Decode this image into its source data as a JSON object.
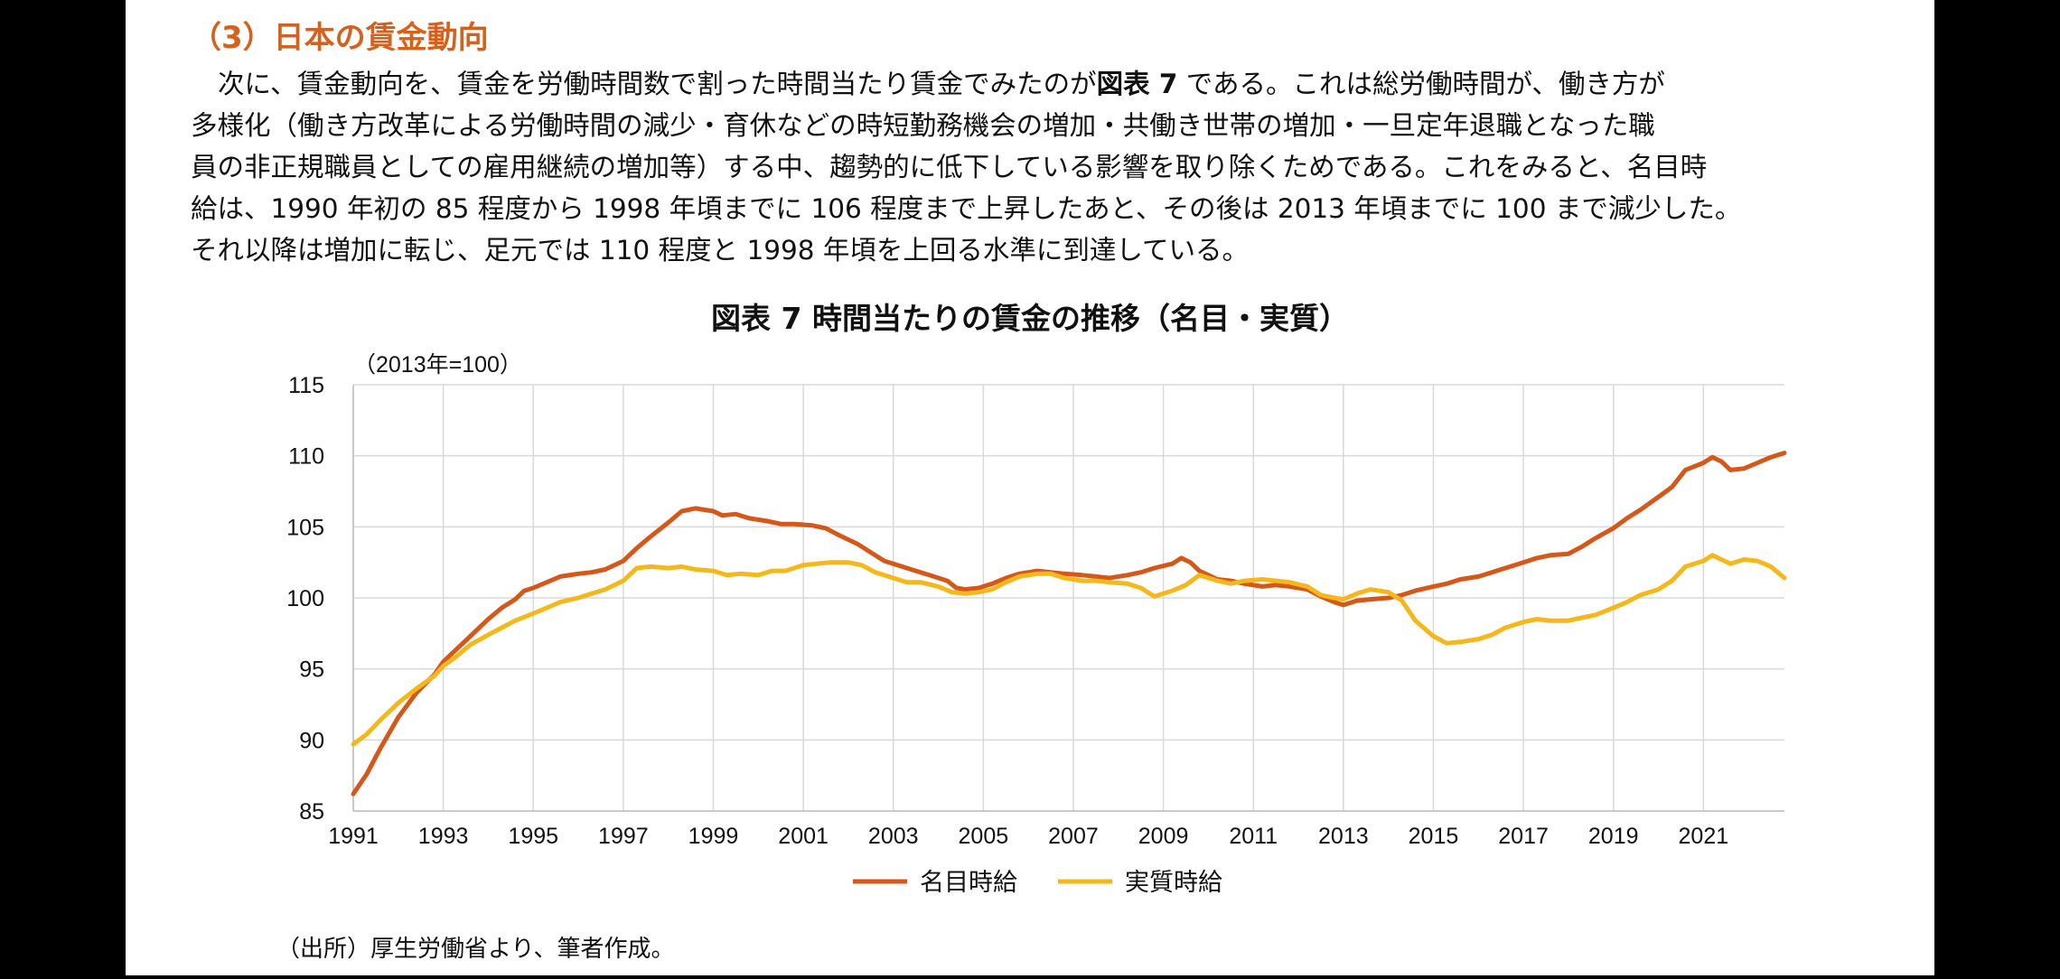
{
  "section": {
    "heading": "（3）日本の賃金動向"
  },
  "paragraph": {
    "l1_pre": "次に、賃金動向を、賃金を労働時間数で割った時間当たり賃金でみたのが",
    "l1_ref": "図表 7",
    "l1_post": " である。これは総労働時間が、働き方が",
    "l2": "多様化（働き方改革による労働時間の減少・育休などの時短勤務機会の増加・共働き世帯の増加・一旦定年退職となった職",
    "l3": "員の非正規職員としての雇用継続の増加等）する中、趨勢的に低下している影響を取り除くためである。これをみると、名目時",
    "l4": "給は、1990 年初の 85 程度から 1998 年頃までに 106 程度まで上昇したあと、その後は 2013 年頃までに 100 まで減少した。",
    "l5": "それ以降は増加に転じ、足元では 110 程度と 1998 年頃を上回る水準に到達している。"
  },
  "footer": {
    "source": "（出所）厚生労働省より、筆者作成。"
  },
  "chart_data": {
    "type": "line",
    "title": "図表 7  時間当たりの賃金の推移（名目・実質）",
    "unit_label": "（2013年=100）",
    "ylim": [
      85,
      115
    ],
    "xlim": [
      1991,
      2022.8
    ],
    "y_ticks": [
      "85",
      "90",
      "95",
      "100",
      "105",
      "110",
      "115"
    ],
    "x_ticks": [
      "1991",
      "1993",
      "1995",
      "1997",
      "1999",
      "2001",
      "2003",
      "2005",
      "2007",
      "2009",
      "2011",
      "2013",
      "2015",
      "2017",
      "2019",
      "2021"
    ],
    "grid": true,
    "legend_position": "bottom-center",
    "series": [
      {
        "name": "名目時給",
        "color": "#d4581a",
        "points": [
          [
            1991.0,
            86.2
          ],
          [
            1991.3,
            87.6
          ],
          [
            1991.6,
            89.4
          ],
          [
            1992.0,
            91.6
          ],
          [
            1992.4,
            93.3
          ],
          [
            1992.8,
            94.6
          ],
          [
            1993.0,
            95.5
          ],
          [
            1993.3,
            96.4
          ],
          [
            1993.6,
            97.3
          ],
          [
            1994.0,
            98.5
          ],
          [
            1994.3,
            99.3
          ],
          [
            1994.6,
            99.9
          ],
          [
            1994.8,
            100.5
          ],
          [
            1995.0,
            100.7
          ],
          [
            1995.3,
            101.1
          ],
          [
            1995.6,
            101.5
          ],
          [
            1996.0,
            101.7
          ],
          [
            1996.3,
            101.8
          ],
          [
            1996.6,
            102.0
          ],
          [
            1997.0,
            102.6
          ],
          [
            1997.3,
            103.5
          ],
          [
            1997.6,
            104.3
          ],
          [
            1998.0,
            105.3
          ],
          [
            1998.3,
            106.1
          ],
          [
            1998.6,
            106.3
          ],
          [
            1999.0,
            106.1
          ],
          [
            1999.2,
            105.8
          ],
          [
            1999.5,
            105.9
          ],
          [
            1999.8,
            105.6
          ],
          [
            2000.2,
            105.4
          ],
          [
            2000.5,
            105.2
          ],
          [
            2000.8,
            105.2
          ],
          [
            2001.2,
            105.1
          ],
          [
            2001.5,
            104.9
          ],
          [
            2001.8,
            104.4
          ],
          [
            2002.2,
            103.8
          ],
          [
            2002.5,
            103.2
          ],
          [
            2002.8,
            102.6
          ],
          [
            2003.2,
            102.2
          ],
          [
            2003.5,
            101.9
          ],
          [
            2003.8,
            101.6
          ],
          [
            2004.2,
            101.2
          ],
          [
            2004.4,
            100.7
          ],
          [
            2004.6,
            100.6
          ],
          [
            2004.9,
            100.7
          ],
          [
            2005.2,
            101.0
          ],
          [
            2005.5,
            101.4
          ],
          [
            2005.8,
            101.7
          ],
          [
            2006.2,
            101.9
          ],
          [
            2006.5,
            101.8
          ],
          [
            2006.8,
            101.7
          ],
          [
            2007.2,
            101.6
          ],
          [
            2007.5,
            101.5
          ],
          [
            2007.8,
            101.4
          ],
          [
            2008.2,
            101.6
          ],
          [
            2008.5,
            101.8
          ],
          [
            2008.8,
            102.1
          ],
          [
            2009.2,
            102.4
          ],
          [
            2009.4,
            102.8
          ],
          [
            2009.6,
            102.5
          ],
          [
            2009.8,
            101.9
          ],
          [
            2010.2,
            101.3
          ],
          [
            2010.5,
            101.2
          ],
          [
            2010.8,
            101.0
          ],
          [
            2011.2,
            100.8
          ],
          [
            2011.5,
            100.9
          ],
          [
            2011.8,
            100.8
          ],
          [
            2012.2,
            100.6
          ],
          [
            2012.5,
            100.1
          ],
          [
            2012.8,
            99.7
          ],
          [
            2013.0,
            99.5
          ],
          [
            2013.3,
            99.8
          ],
          [
            2013.6,
            99.9
          ],
          [
            2014.0,
            100.0
          ],
          [
            2014.3,
            100.2
          ],
          [
            2014.6,
            100.5
          ],
          [
            2015.0,
            100.8
          ],
          [
            2015.3,
            101.0
          ],
          [
            2015.6,
            101.3
          ],
          [
            2016.0,
            101.5
          ],
          [
            2016.3,
            101.8
          ],
          [
            2016.6,
            102.1
          ],
          [
            2017.0,
            102.5
          ],
          [
            2017.3,
            102.8
          ],
          [
            2017.6,
            103.0
          ],
          [
            2018.0,
            103.1
          ],
          [
            2018.3,
            103.6
          ],
          [
            2018.6,
            104.2
          ],
          [
            2019.0,
            104.9
          ],
          [
            2019.3,
            105.6
          ],
          [
            2019.6,
            106.2
          ],
          [
            2020.0,
            107.1
          ],
          [
            2020.3,
            107.8
          ],
          [
            2020.6,
            109.0
          ],
          [
            2021.0,
            109.5
          ],
          [
            2021.2,
            109.9
          ],
          [
            2021.4,
            109.6
          ],
          [
            2021.6,
            109.0
          ],
          [
            2021.9,
            109.1
          ],
          [
            2022.2,
            109.5
          ],
          [
            2022.5,
            109.9
          ],
          [
            2022.8,
            110.2
          ]
        ]
      },
      {
        "name": "実質時給",
        "color": "#f5b81c",
        "points": [
          [
            1991.0,
            89.7
          ],
          [
            1991.3,
            90.4
          ],
          [
            1991.6,
            91.4
          ],
          [
            1992.0,
            92.6
          ],
          [
            1992.4,
            93.6
          ],
          [
            1992.8,
            94.5
          ],
          [
            1993.0,
            95.2
          ],
          [
            1993.3,
            95.9
          ],
          [
            1993.6,
            96.7
          ],
          [
            1994.0,
            97.4
          ],
          [
            1994.3,
            97.9
          ],
          [
            1994.6,
            98.4
          ],
          [
            1995.0,
            98.9
          ],
          [
            1995.3,
            99.3
          ],
          [
            1995.6,
            99.7
          ],
          [
            1996.0,
            100.0
          ],
          [
            1996.3,
            100.3
          ],
          [
            1996.6,
            100.6
          ],
          [
            1997.0,
            101.2
          ],
          [
            1997.3,
            102.1
          ],
          [
            1997.6,
            102.2
          ],
          [
            1998.0,
            102.1
          ],
          [
            1998.3,
            102.2
          ],
          [
            1998.6,
            102.0
          ],
          [
            1999.0,
            101.9
          ],
          [
            1999.3,
            101.6
          ],
          [
            1999.6,
            101.7
          ],
          [
            2000.0,
            101.6
          ],
          [
            2000.3,
            101.9
          ],
          [
            2000.6,
            101.9
          ],
          [
            2001.0,
            102.3
          ],
          [
            2001.3,
            102.4
          ],
          [
            2001.6,
            102.5
          ],
          [
            2002.0,
            102.5
          ],
          [
            2002.3,
            102.3
          ],
          [
            2002.6,
            101.8
          ],
          [
            2003.0,
            101.4
          ],
          [
            2003.3,
            101.1
          ],
          [
            2003.6,
            101.1
          ],
          [
            2004.0,
            100.8
          ],
          [
            2004.3,
            100.4
          ],
          [
            2004.6,
            100.3
          ],
          [
            2004.9,
            100.4
          ],
          [
            2005.2,
            100.6
          ],
          [
            2005.5,
            101.1
          ],
          [
            2005.8,
            101.5
          ],
          [
            2006.2,
            101.7
          ],
          [
            2006.5,
            101.7
          ],
          [
            2006.8,
            101.4
          ],
          [
            2007.2,
            101.2
          ],
          [
            2007.5,
            101.2
          ],
          [
            2007.8,
            101.1
          ],
          [
            2008.2,
            101.0
          ],
          [
            2008.5,
            100.7
          ],
          [
            2008.8,
            100.1
          ],
          [
            2009.2,
            100.5
          ],
          [
            2009.5,
            100.9
          ],
          [
            2009.8,
            101.6
          ],
          [
            2010.2,
            101.2
          ],
          [
            2010.5,
            101.0
          ],
          [
            2010.8,
            101.2
          ],
          [
            2011.2,
            101.3
          ],
          [
            2011.5,
            101.2
          ],
          [
            2011.8,
            101.1
          ],
          [
            2012.2,
            100.8
          ],
          [
            2012.5,
            100.2
          ],
          [
            2012.8,
            100.0
          ],
          [
            2013.0,
            99.9
          ],
          [
            2013.3,
            100.3
          ],
          [
            2013.6,
            100.6
          ],
          [
            2014.0,
            100.4
          ],
          [
            2014.3,
            99.8
          ],
          [
            2014.6,
            98.4
          ],
          [
            2015.0,
            97.3
          ],
          [
            2015.3,
            96.8
          ],
          [
            2015.6,
            96.9
          ],
          [
            2016.0,
            97.1
          ],
          [
            2016.3,
            97.4
          ],
          [
            2016.6,
            97.9
          ],
          [
            2017.0,
            98.3
          ],
          [
            2017.3,
            98.5
          ],
          [
            2017.6,
            98.4
          ],
          [
            2018.0,
            98.4
          ],
          [
            2018.3,
            98.6
          ],
          [
            2018.6,
            98.8
          ],
          [
            2019.0,
            99.3
          ],
          [
            2019.3,
            99.7
          ],
          [
            2019.6,
            100.2
          ],
          [
            2020.0,
            100.6
          ],
          [
            2020.3,
            101.2
          ],
          [
            2020.6,
            102.2
          ],
          [
            2021.0,
            102.6
          ],
          [
            2021.2,
            103.0
          ],
          [
            2021.4,
            102.7
          ],
          [
            2021.6,
            102.4
          ],
          [
            2021.9,
            102.7
          ],
          [
            2022.2,
            102.6
          ],
          [
            2022.5,
            102.2
          ],
          [
            2022.8,
            101.4
          ]
        ]
      }
    ]
  }
}
